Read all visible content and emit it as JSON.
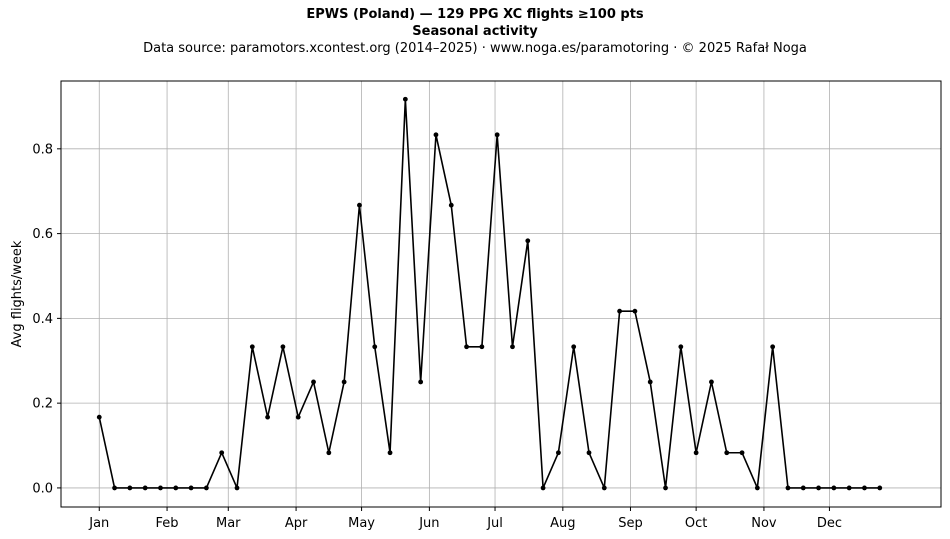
{
  "chart_data": {
    "type": "line",
    "title": "EPWS (Poland)  —  129 PPG XC flights ≥100 pts",
    "title2": "Seasonal activity",
    "subtitle": "Data source: paramotors.xcontest.org (2014–2025)  ·  www.noga.es/paramotoring  ·  © 2025 Rafał Noga",
    "xlabel": "",
    "ylabel": "Avg flights/week",
    "x_unit": "week of year",
    "x": [
      1,
      2,
      3,
      4,
      5,
      6,
      7,
      8,
      9,
      10,
      11,
      12,
      13,
      14,
      15,
      16,
      17,
      18,
      19,
      20,
      21,
      22,
      23,
      24,
      25,
      26,
      27,
      28,
      29,
      30,
      31,
      32,
      33,
      34,
      35,
      36,
      37,
      38,
      39,
      40,
      41,
      42,
      43,
      44,
      45,
      46,
      47,
      48,
      49,
      50,
      51,
      52
    ],
    "series": [
      {
        "values": [
          0.167,
          0,
          0,
          0,
          0,
          0,
          0,
          0,
          0.083,
          0,
          0.333,
          0.167,
          0.333,
          0.167,
          0.25,
          0.083,
          0.25,
          0.667,
          0.333,
          0.083,
          0.917,
          0.25,
          0.833,
          0.667,
          0.333,
          0.333,
          0.833,
          0.333,
          0.583,
          0,
          0.083,
          0.333,
          0.083,
          0,
          0.417,
          0.417,
          0.25,
          0,
          0.333,
          0.083,
          0.25,
          0.083,
          0.083,
          0,
          0.333,
          0,
          0,
          0,
          0,
          0,
          0,
          0
        ],
        "color": "#000000"
      }
    ],
    "xticks": [
      {
        "label": "Jan",
        "x": 1
      },
      {
        "label": "Feb",
        "x": 5.43
      },
      {
        "label": "Mar",
        "x": 9.43
      },
      {
        "label": "Apr",
        "x": 13.86
      },
      {
        "label": "May",
        "x": 18.14
      },
      {
        "label": "Jun",
        "x": 22.57
      },
      {
        "label": "Jul",
        "x": 26.86
      },
      {
        "label": "Aug",
        "x": 31.29
      },
      {
        "label": "Sep",
        "x": 35.71
      },
      {
        "label": "Oct",
        "x": 40
      },
      {
        "label": "Nov",
        "x": 44.43
      },
      {
        "label": "Dec",
        "x": 48.71
      }
    ],
    "yticks": [
      0,
      0.2,
      0.4,
      0.6,
      0.8
    ],
    "ytick_labels": [
      "0.0",
      "0.2",
      "0.4",
      "0.6",
      "0.8"
    ],
    "xlim": [
      -1.5,
      56
    ],
    "ylim": [
      -0.045,
      0.96
    ],
    "grid": true,
    "legend": false,
    "marker": "point",
    "line_color": "#000000",
    "grid_color": "#b0b0b0"
  }
}
